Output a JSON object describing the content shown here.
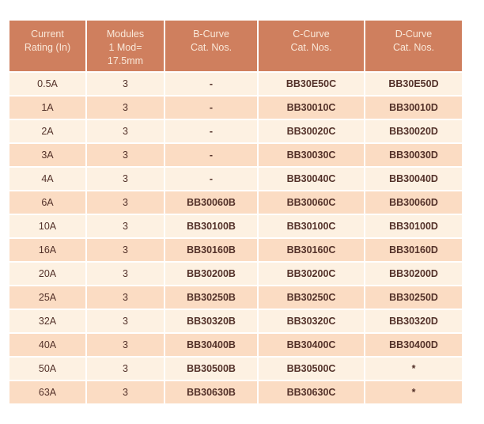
{
  "table": {
    "headers": [
      "Current\nRating (In)",
      "Modules\n1 Mod=\n17.5mm",
      "B-Curve\nCat. Nos.",
      "C-Curve\nCat. Nos.",
      "D-Curve\nCat. Nos."
    ],
    "rows": [
      [
        "0.5A",
        "3",
        "-",
        "BB30E50C",
        "BB30E50D"
      ],
      [
        "1A",
        "3",
        "-",
        "BB30010C",
        "BB30010D"
      ],
      [
        "2A",
        "3",
        "-",
        "BB30020C",
        "BB30020D"
      ],
      [
        "3A",
        "3",
        "-",
        "BB30030C",
        "BB30030D"
      ],
      [
        "4A",
        "3",
        "-",
        "BB30040C",
        "BB30040D"
      ],
      [
        "6A",
        "3",
        "BB30060B",
        "BB30060C",
        "BB30060D"
      ],
      [
        "10A",
        "3",
        "BB30100B",
        "BB30100C",
        "BB30100D"
      ],
      [
        "16A",
        "3",
        "BB30160B",
        "BB30160C",
        "BB30160D"
      ],
      [
        "20A",
        "3",
        "BB30200B",
        "BB30200C",
        "BB30200D"
      ],
      [
        "25A",
        "3",
        "BB30250B",
        "BB30250C",
        "BB30250D"
      ],
      [
        "32A",
        "3",
        "BB30320B",
        "BB30320C",
        "BB30320D"
      ],
      [
        "40A",
        "3",
        "BB30400B",
        "BB30400C",
        "BB30400D"
      ],
      [
        "50A",
        "3",
        "BB30500B",
        "BB30500C",
        "*"
      ],
      [
        "63A",
        "3",
        "BB30630B",
        "BB30630C",
        "*"
      ]
    ],
    "colors": {
      "header_bg": "#cf7f5e",
      "header_text": "#f9e8d9",
      "row_light": "#fdf1e2",
      "row_dark": "#fbdcc3",
      "body_text": "#533129",
      "grid": "#ffffff"
    }
  }
}
